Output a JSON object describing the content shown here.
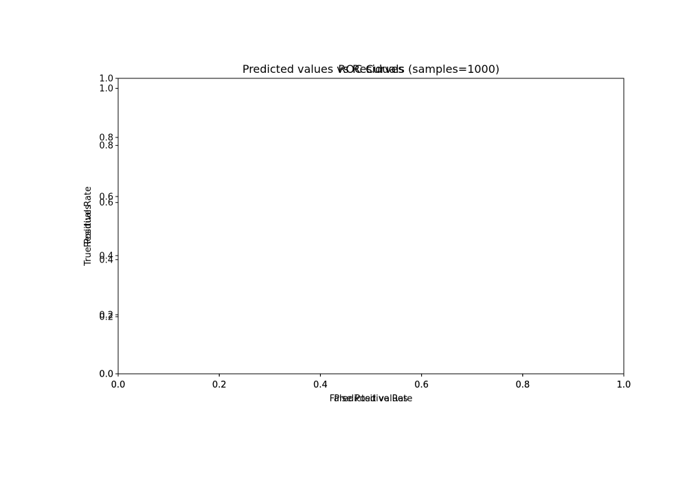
{
  "chart_data": [
    {
      "type": "line",
      "title": "ROC Curves",
      "xlabel": "False Positive Rate",
      "ylabel": "True Positive Rate",
      "xlim": [
        0,
        1
      ],
      "ylim": [
        0,
        1
      ],
      "xticks": [
        "0.0",
        "0.2",
        "0.4",
        "0.6",
        "0.8",
        "1.0"
      ],
      "yticks": [
        "0.0",
        "0.2",
        "0.4",
        "0.6",
        "0.8",
        "1.0"
      ],
      "grid": false,
      "series": []
    },
    {
      "type": "scatter",
      "title": "Predicted values vs Residuals (samples=1000)",
      "xlabel": "Predicted values",
      "ylabel": "Residuals",
      "xlim": [
        0,
        1
      ],
      "ylim": [
        0,
        1.035
      ],
      "xticks": [
        "0.0",
        "0.2",
        "0.4",
        "0.6",
        "0.8",
        "1.0"
      ],
      "yticks": [
        "0.0",
        "0.2",
        "0.4",
        "0.6",
        "0.8",
        "1.0"
      ],
      "grid": false,
      "series": []
    }
  ]
}
